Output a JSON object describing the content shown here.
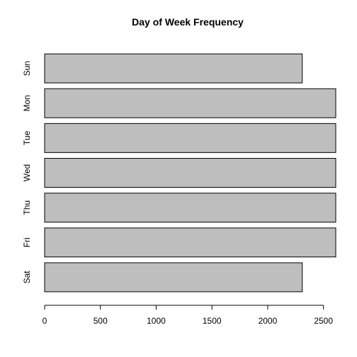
{
  "chart_data": {
    "type": "bar",
    "orientation": "horizontal",
    "title": "Day of Week Frequency",
    "xlabel": "",
    "ylabel": "",
    "categories": [
      "Sun",
      "Mon",
      "Tue",
      "Wed",
      "Thu",
      "Fri",
      "Sat"
    ],
    "values": [
      2310,
      2610,
      2610,
      2610,
      2610,
      2610,
      2310
    ],
    "xlim": [
      0,
      2610
    ],
    "xticks": [
      0,
      500,
      1000,
      1500,
      2000,
      2500
    ],
    "xtick_labels": [
      "0",
      "500",
      "1000",
      "1500",
      "2000",
      "2500"
    ],
    "grid": false,
    "bar_color": "#bebebe",
    "bar_border_color": "#000000"
  }
}
